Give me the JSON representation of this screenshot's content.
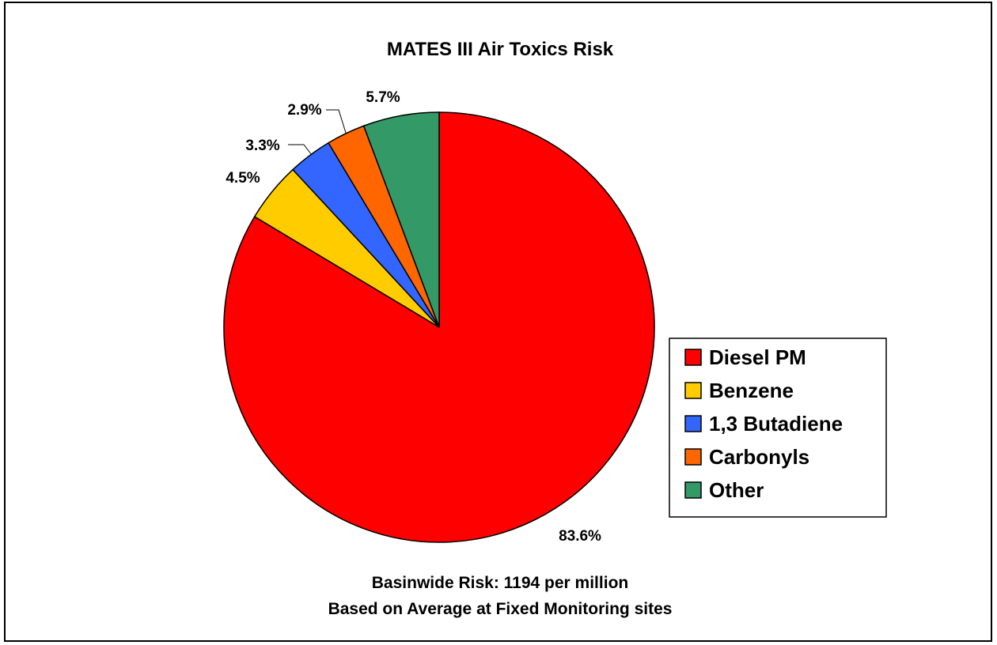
{
  "chart_data": {
    "type": "pie",
    "title": "MATES III Air Toxics Risk",
    "slices": [
      {
        "label": "Diesel PM",
        "value": 83.6,
        "display": "83.6%",
        "color": "#ff0000"
      },
      {
        "label": "Benzene",
        "value": 4.5,
        "display": "4.5%",
        "color": "#ffcc00"
      },
      {
        "label": "1,3 Butadiene",
        "value": 3.3,
        "display": "3.3%",
        "color": "#3366ff"
      },
      {
        "label": "Carbonyls",
        "value": 2.9,
        "display": "2.9%",
        "color": "#ff6600"
      },
      {
        "label": "Other",
        "value": 5.7,
        "display": "5.7%",
        "color": "#339966"
      }
    ],
    "legend_position": "right",
    "notes": [
      "Basinwide Risk: 1194 per million",
      "Based on  Average at Fixed Monitoring sites"
    ]
  }
}
